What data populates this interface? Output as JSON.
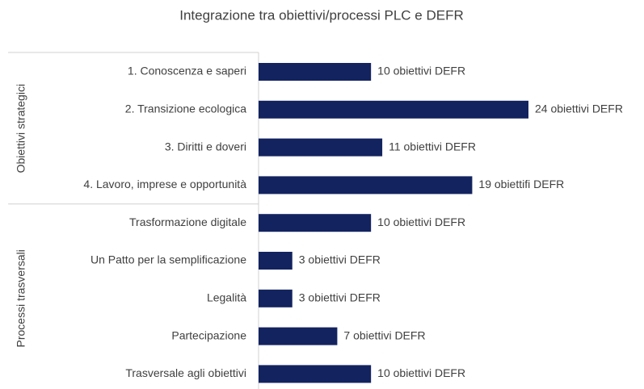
{
  "chart_data": {
    "type": "bar",
    "title": "Integrazione tra obiettivi/processi PLC e DEFR",
    "color": "#13235f",
    "groups": [
      {
        "name": "Obiettivi strategici",
        "categories": [
          "1. Conoscenza e saperi",
          "2. Transizione ecologica",
          "3. Diritti e doveri",
          "4. Lavoro, imprese e opportunità"
        ],
        "values": [
          10,
          24,
          11,
          19
        ],
        "value_labels": [
          "10 obiettivi DEFR",
          "24 obiettivi DEFR",
          "11 obiettivi DEFR",
          "19 obiettifi DEFR"
        ]
      },
      {
        "name": "Processi trasversali",
        "categories": [
          "Trasformazione digitale",
          "Un Patto per la semplificazione",
          "Legalità",
          "Partecipazione",
          "Trasversale agli obiettivi"
        ],
        "values": [
          10,
          3,
          3,
          7,
          10
        ],
        "value_labels": [
          "10 obiettivi DEFR",
          "3 obiettivi DEFR",
          "3 obiettivi DEFR",
          "7 obiettivi DEFR",
          "10 obiettivi DEFR"
        ]
      }
    ]
  }
}
